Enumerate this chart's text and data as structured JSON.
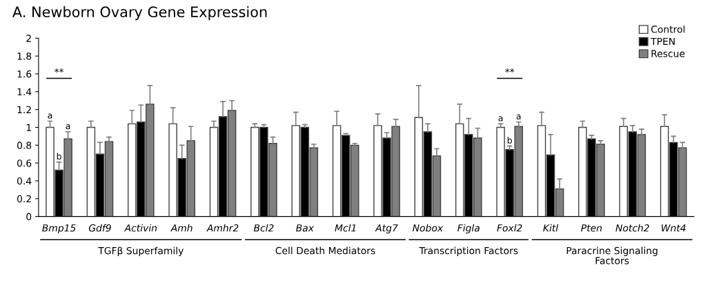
{
  "chart_data": {
    "type": "bar",
    "title": "A. Newborn Ovary Gene Expression",
    "categories": [
      "Bmp15",
      "Gdf9",
      "Activin",
      "Amh",
      "Amhr2",
      "Bcl2",
      "Bax",
      "Mcl1",
      "Atg7",
      "Nobox",
      "Figla",
      "Foxl2",
      "Kitl",
      "Pten",
      "Notch2",
      "Wnt4"
    ],
    "series": [
      {
        "name": "Control",
        "color": "#ffffff",
        "values": [
          1.0,
          1.0,
          1.04,
          1.04,
          1.0,
          1.0,
          1.02,
          1.02,
          1.02,
          1.11,
          1.04,
          1.0,
          1.02,
          1.0,
          1.01,
          1.01
        ],
        "errors": [
          [
            1.0,
            1.07
          ],
          [
            1.0,
            1.07
          ],
          [
            1.04,
            1.19
          ],
          [
            1.04,
            1.22
          ],
          [
            1.0,
            1.07
          ],
          [
            1.0,
            1.04
          ],
          [
            1.02,
            1.17
          ],
          [
            1.02,
            1.18
          ],
          [
            1.02,
            1.15
          ],
          [
            1.11,
            1.47
          ],
          [
            1.04,
            1.26
          ],
          [
            1.0,
            1.04
          ],
          [
            1.02,
            1.17
          ],
          [
            1.0,
            1.07
          ],
          [
            1.01,
            1.1
          ],
          [
            1.01,
            1.14
          ]
        ]
      },
      {
        "name": "TPEN",
        "color": "#000000",
        "values": [
          0.52,
          0.7,
          1.06,
          0.65,
          1.12,
          1.0,
          1.0,
          0.91,
          0.88,
          0.95,
          0.92,
          0.75,
          0.69,
          0.87,
          0.95,
          0.83
        ],
        "errors": [
          [
            0.52,
            0.61
          ],
          [
            0.7,
            0.83
          ],
          [
            1.06,
            1.25
          ],
          [
            0.65,
            0.8
          ],
          [
            1.12,
            1.29
          ],
          [
            1.0,
            1.03
          ],
          [
            1.0,
            1.03
          ],
          [
            0.91,
            0.93
          ],
          [
            0.88,
            0.94
          ],
          [
            0.95,
            1.04
          ],
          [
            0.92,
            1.1
          ],
          [
            0.75,
            0.79
          ],
          [
            0.69,
            0.92
          ],
          [
            0.87,
            0.91
          ],
          [
            0.95,
            1.02
          ],
          [
            0.83,
            0.9
          ]
        ]
      },
      {
        "name": "Rescue",
        "color": "#808080",
        "values": [
          0.87,
          0.84,
          1.26,
          0.85,
          1.19,
          0.82,
          0.77,
          0.8,
          1.01,
          0.68,
          0.88,
          1.01,
          0.31,
          0.81,
          0.92,
          0.77
        ],
        "errors": [
          [
            0.87,
            0.95
          ],
          [
            0.84,
            0.89
          ],
          [
            1.26,
            1.47
          ],
          [
            0.85,
            1.01
          ],
          [
            1.19,
            1.3
          ],
          [
            0.82,
            0.89
          ],
          [
            0.77,
            0.81
          ],
          [
            0.8,
            0.82
          ],
          [
            1.01,
            1.09
          ],
          [
            0.68,
            0.76
          ],
          [
            0.88,
            0.99
          ],
          [
            1.01,
            1.06
          ],
          [
            0.31,
            0.42
          ],
          [
            0.81,
            0.85
          ],
          [
            0.92,
            0.98
          ],
          [
            0.77,
            0.83
          ]
        ]
      }
    ],
    "ylim": [
      0,
      2
    ],
    "yticks": [
      0,
      0.2,
      0.4,
      0.6,
      0.8,
      1,
      1.2,
      1.4,
      1.6,
      1.8,
      2
    ],
    "legend": "top right",
    "annotations": [
      "**",
      "a",
      "b",
      "a",
      "**",
      "a",
      "b",
      "a",
      "TGFβ Superfamily",
      "Cell Death Mediators",
      "Transcription Factors",
      "Paracrine Signaling\nFactors"
    ]
  }
}
